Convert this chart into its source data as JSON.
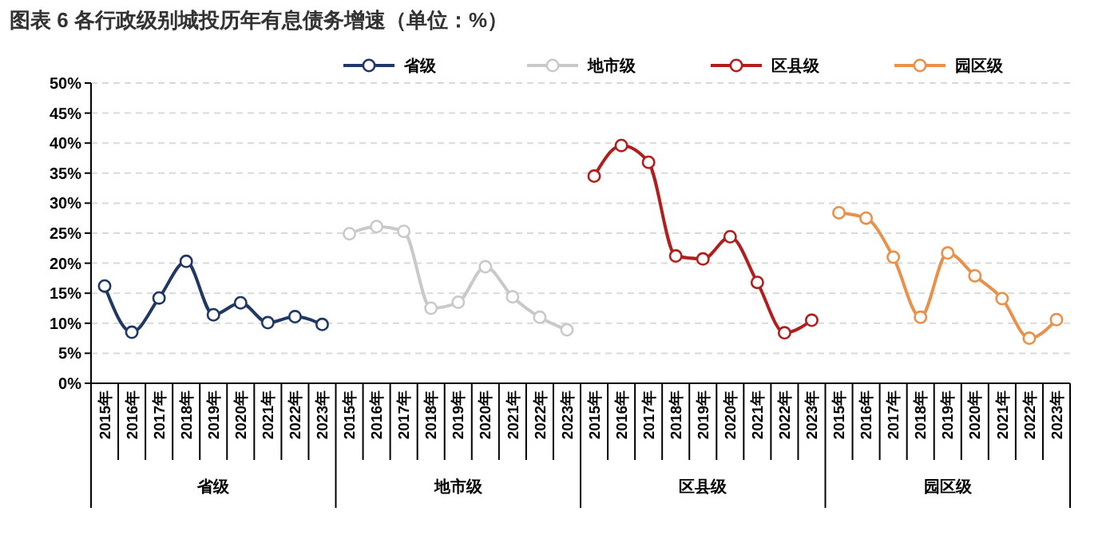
{
  "chart_data": {
    "type": "line",
    "title": "图表 6 各行政级别城投历年有息债务增速（单位：%）",
    "categories": [
      "2015年",
      "2016年",
      "2017年",
      "2018年",
      "2019年",
      "2020年",
      "2021年",
      "2022年",
      "2023年",
      "2015年",
      "2016年",
      "2017年",
      "2018年",
      "2019年",
      "2020年",
      "2021年",
      "2022年",
      "2023年",
      "2015年",
      "2016年",
      "2017年",
      "2018年",
      "2019年",
      "2020年",
      "2021年",
      "2022年",
      "2023年",
      "2015年",
      "2016年",
      "2017年",
      "2018年",
      "2019年",
      "2020年",
      "2021年",
      "2022年",
      "2023年"
    ],
    "annotations": [
      "省级",
      "地市级",
      "区县级",
      "园区级"
    ],
    "series": [
      {
        "name": "省级",
        "color": "#1f3864",
        "values": [
          16.2,
          8.5,
          14.2,
          20.3,
          11.4,
          13.4,
          10.1,
          11.1,
          9.8,
          null,
          null,
          null,
          null,
          null,
          null,
          null,
          null,
          null,
          null,
          null,
          null,
          null,
          null,
          null,
          null,
          null,
          null,
          null,
          null,
          null,
          null,
          null,
          null,
          null,
          null,
          null
        ]
      },
      {
        "name": "地市级",
        "color": "#c9c9c9",
        "values": [
          null,
          null,
          null,
          null,
          null,
          null,
          null,
          null,
          null,
          24.9,
          26.1,
          25.3,
          12.5,
          13.5,
          19.4,
          14.4,
          11.0,
          8.9,
          null,
          null,
          null,
          null,
          null,
          null,
          null,
          null,
          null,
          null,
          null,
          null,
          null,
          null,
          null,
          null,
          null,
          null
        ]
      },
      {
        "name": "区县级",
        "color": "#b01e1e",
        "values": [
          null,
          null,
          null,
          null,
          null,
          null,
          null,
          null,
          null,
          null,
          null,
          null,
          null,
          null,
          null,
          null,
          null,
          null,
          34.5,
          39.6,
          36.8,
          21.2,
          20.7,
          24.4,
          16.8,
          8.4,
          10.5,
          null,
          null,
          null,
          null,
          null,
          null,
          null,
          null,
          null
        ]
      },
      {
        "name": "园区级",
        "color": "#e8914a",
        "values": [
          null,
          null,
          null,
          null,
          null,
          null,
          null,
          null,
          null,
          null,
          null,
          null,
          null,
          null,
          null,
          null,
          null,
          null,
          null,
          null,
          null,
          null,
          null,
          null,
          null,
          null,
          null,
          28.4,
          27.5,
          21.0,
          11.0,
          21.7,
          17.9,
          14.1,
          7.5,
          10.6
        ]
      }
    ],
    "ylim": [
      0,
      50
    ],
    "yticks": [
      {
        "value": 0,
        "label": "0%"
      },
      {
        "value": 5,
        "label": "5%"
      },
      {
        "value": 10,
        "label": "10%"
      },
      {
        "value": 15,
        "label": "15%"
      },
      {
        "value": 20,
        "label": "20%"
      },
      {
        "value": 25,
        "label": "25%"
      },
      {
        "value": 30,
        "label": "30%"
      },
      {
        "value": 35,
        "label": "35%"
      },
      {
        "value": 40,
        "label": "40%"
      },
      {
        "value": 45,
        "label": "45%"
      },
      {
        "value": 50,
        "label": "50%"
      }
    ],
    "grid": "y",
    "legend": "top",
    "marker": "circle",
    "line_style": "solid"
  }
}
